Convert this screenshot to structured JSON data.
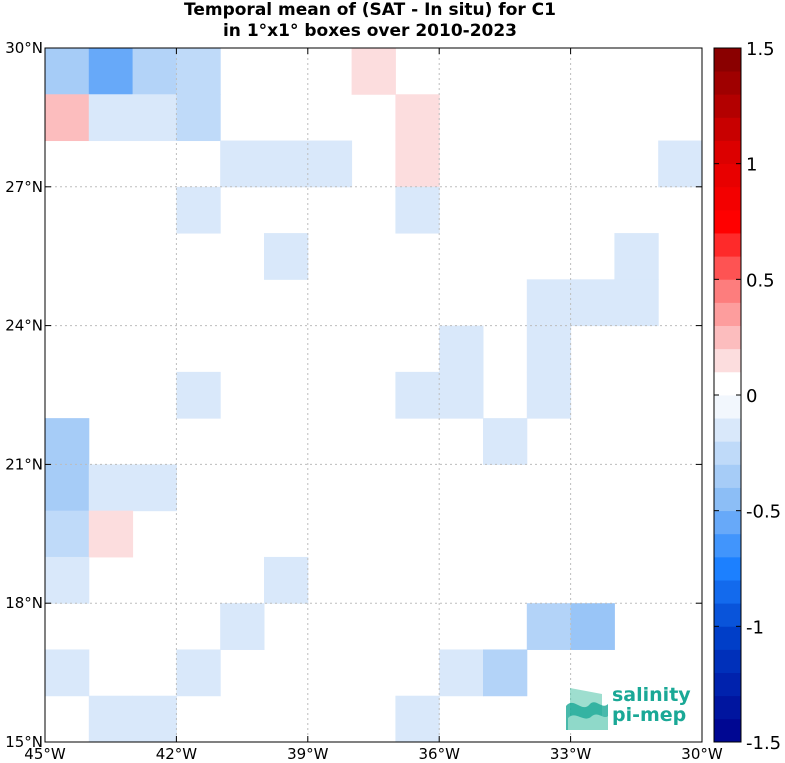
{
  "title": {
    "line1": "Temporal mean of (SAT - In situ) for C1",
    "line2": "in 1°x1° boxes over 2010-2023"
  },
  "logo": {
    "line1": "salinity",
    "line2": "pi-mep",
    "color": "#1aa896"
  },
  "chart_data": {
    "type": "heatmap",
    "x_ticks": [
      {
        "value": -45,
        "label": "45°W"
      },
      {
        "value": -42,
        "label": "42°W"
      },
      {
        "value": -39,
        "label": "39°W"
      },
      {
        "value": -36,
        "label": "36°W"
      },
      {
        "value": -33,
        "label": "33°W"
      },
      {
        "value": -30,
        "label": "30°W"
      }
    ],
    "y_ticks": [
      {
        "value": 15,
        "label": "15°N"
      },
      {
        "value": 18,
        "label": "18°N"
      },
      {
        "value": 21,
        "label": "21°N"
      },
      {
        "value": 24,
        "label": "24°N"
      },
      {
        "value": 27,
        "label": "27°N"
      },
      {
        "value": 30,
        "label": "30°N"
      }
    ],
    "xlim": [
      -45,
      -30
    ],
    "ylim": [
      15,
      30
    ],
    "grid": true,
    "colorbar": {
      "range": [
        -1.5,
        1.5
      ],
      "step": 0.1,
      "ticks": [
        {
          "value": 1.5,
          "label": "1.5"
        },
        {
          "value": 1,
          "label": "1"
        },
        {
          "value": 0.5,
          "label": "0.5"
        },
        {
          "value": 0,
          "label": "0"
        },
        {
          "value": -0.5,
          "label": "-0.5"
        },
        {
          "value": -1,
          "label": "-1"
        },
        {
          "value": -1.5,
          "label": "-1.5"
        }
      ]
    },
    "cells": [
      {
        "lon": -45,
        "lat": 29,
        "value": -0.35
      },
      {
        "lon": -44,
        "lat": 29,
        "value": -0.55
      },
      {
        "lon": -43,
        "lat": 29,
        "value": -0.3
      },
      {
        "lon": -42,
        "lat": 29,
        "value": -0.25
      },
      {
        "lon": -38,
        "lat": 29,
        "value": 0.15
      },
      {
        "lon": -45,
        "lat": 28,
        "value": 0.25
      },
      {
        "lon": -44,
        "lat": 28,
        "value": -0.15
      },
      {
        "lon": -43,
        "lat": 28,
        "value": -0.15
      },
      {
        "lon": -42,
        "lat": 28,
        "value": -0.25
      },
      {
        "lon": -37,
        "lat": 28,
        "value": 0.15
      },
      {
        "lon": -41,
        "lat": 27,
        "value": -0.15
      },
      {
        "lon": -40,
        "lat": 27,
        "value": -0.15
      },
      {
        "lon": -39,
        "lat": 27,
        "value": -0.15
      },
      {
        "lon": -37,
        "lat": 27,
        "value": 0.15
      },
      {
        "lon": -31,
        "lat": 27,
        "value": -0.15
      },
      {
        "lon": -42,
        "lat": 26,
        "value": -0.15
      },
      {
        "lon": -37,
        "lat": 26,
        "value": -0.15
      },
      {
        "lon": -40,
        "lat": 25,
        "value": -0.15
      },
      {
        "lon": -32,
        "lat": 25,
        "value": -0.15
      },
      {
        "lon": -34,
        "lat": 24,
        "value": -0.15
      },
      {
        "lon": -33,
        "lat": 24,
        "value": -0.15
      },
      {
        "lon": -32,
        "lat": 24,
        "value": -0.15
      },
      {
        "lon": -36,
        "lat": 23,
        "value": -0.15
      },
      {
        "lon": -34,
        "lat": 23,
        "value": -0.15
      },
      {
        "lon": -42,
        "lat": 22,
        "value": -0.15
      },
      {
        "lon": -37,
        "lat": 22,
        "value": -0.15
      },
      {
        "lon": -36,
        "lat": 22,
        "value": -0.15
      },
      {
        "lon": -34,
        "lat": 22,
        "value": -0.15
      },
      {
        "lon": -45,
        "lat": 21,
        "value": -0.35
      },
      {
        "lon": -35,
        "lat": 21,
        "value": -0.15
      },
      {
        "lon": -45,
        "lat": 20,
        "value": -0.35
      },
      {
        "lon": -44,
        "lat": 20,
        "value": -0.15
      },
      {
        "lon": -43,
        "lat": 20,
        "value": -0.15
      },
      {
        "lon": -45,
        "lat": 19,
        "value": -0.25
      },
      {
        "lon": -44,
        "lat": 19,
        "value": 0.15
      },
      {
        "lon": -45,
        "lat": 18,
        "value": -0.15
      },
      {
        "lon": -40,
        "lat": 18,
        "value": -0.15
      },
      {
        "lon": -41,
        "lat": 17,
        "value": -0.15
      },
      {
        "lon": -34,
        "lat": 17,
        "value": -0.3
      },
      {
        "lon": -33,
        "lat": 17,
        "value": -0.4
      },
      {
        "lon": -45,
        "lat": 16,
        "value": -0.15
      },
      {
        "lon": -42,
        "lat": 16,
        "value": -0.15
      },
      {
        "lon": -36,
        "lat": 16,
        "value": -0.15
      },
      {
        "lon": -35,
        "lat": 16,
        "value": -0.3
      },
      {
        "lon": -44,
        "lat": 15,
        "value": -0.15
      },
      {
        "lon": -43,
        "lat": 15,
        "value": -0.15
      },
      {
        "lon": -37,
        "lat": 15,
        "value": -0.15
      }
    ]
  }
}
